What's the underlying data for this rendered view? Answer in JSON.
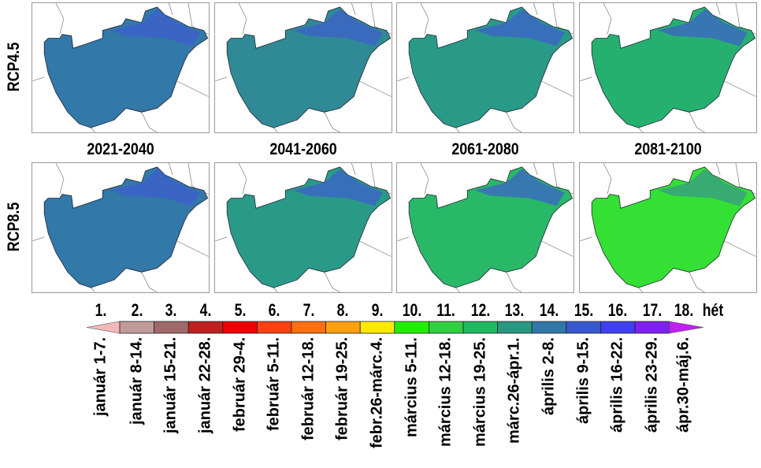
{
  "rows": [
    {
      "label": "RCP4.5",
      "colors": [
        "#3278a8",
        "#2f8a95",
        "#2a9a88",
        "#25b070"
      ]
    },
    {
      "label": "RCP8.5",
      "colors": [
        "#3278a8",
        "#2a9a88",
        "#28b868",
        "#33e033"
      ]
    }
  ],
  "periods": [
    "2021-2040",
    "2041-2060",
    "2061-2080",
    "2081-2100"
  ],
  "legend": {
    "unit": "hét",
    "weeks": [
      "1.",
      "2.",
      "3.",
      "4.",
      "5.",
      "6.",
      "7.",
      "8.",
      "9.",
      "10.",
      "11.",
      "12.",
      "13.",
      "14.",
      "15.",
      "16.",
      "17.",
      "18."
    ],
    "dates": [
      "január 1-7.",
      "január 8-14.",
      "január 15-21.",
      "január 22-28.",
      "február 29-4.",
      "február 5-11.",
      "február 12-18.",
      "február 19-25.",
      "febr.26-márc.4.",
      "március 5-11.",
      "március 12-18.",
      "március 19-25.",
      "márc.26-ápr.1.",
      "április 2-8.",
      "április 9-15.",
      "április 16-22.",
      "április 23-29.",
      "ápr.30-máj.6."
    ],
    "colors": [
      "#f4b8b8",
      "#c09a9a",
      "#a06868",
      "#c02020",
      "#f00000",
      "#ff4010",
      "#ff7010",
      "#ffa010",
      "#ffe800",
      "#20f000",
      "#30d040",
      "#20b860",
      "#289880",
      "#3078a8",
      "#3858d0",
      "#4040f0",
      "#8020f0",
      "#c020f0"
    ]
  }
}
